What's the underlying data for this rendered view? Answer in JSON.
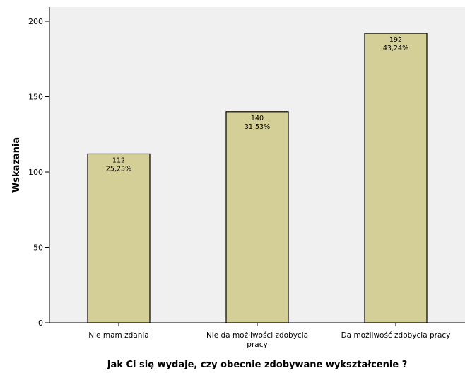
{
  "chart_data": {
    "type": "bar",
    "categories": [
      [
        "Nie mam zdania"
      ],
      [
        "Nie da możliwości zdobycia",
        "pracy"
      ],
      [
        "Da możliwość zdobycia pracy"
      ]
    ],
    "values": [
      112,
      140,
      192
    ],
    "value_labels": [
      "112",
      "140",
      "192"
    ],
    "percent_labels": [
      "25,23%",
      "31,53%",
      "43,24%"
    ],
    "xlabel": "Jak Ci się wydaje, czy obecnie zdobywane wykształcenie ?",
    "ylabel": "Wskazania",
    "ylim": [
      0,
      200
    ],
    "yticks": [
      0,
      50,
      100,
      150,
      200
    ],
    "grid": false,
    "legend": "none",
    "colors": {
      "plot_background": "#f0f0f0",
      "bar_fill": "#d3cf96",
      "bar_stroke": "#000000"
    }
  }
}
